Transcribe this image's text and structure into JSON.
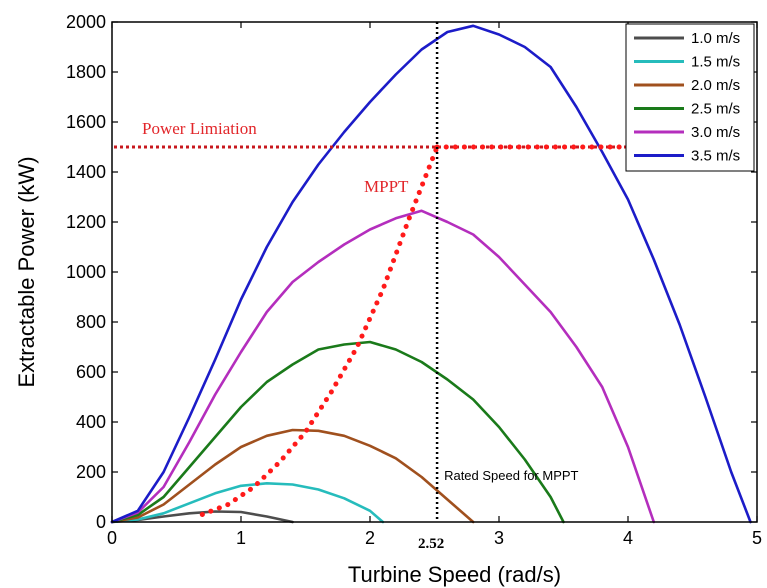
{
  "chart_data": {
    "type": "line",
    "title": "",
    "xlabel": "Turbine Speed (rad/s)",
    "ylabel": "Extractable Power (kW)",
    "xlim": [
      0,
      5
    ],
    "ylim": [
      0,
      2000
    ],
    "xticks": [
      "0",
      "1",
      "2",
      "3",
      "4",
      "5"
    ],
    "yticks": [
      "0",
      "200",
      "400",
      "600",
      "800",
      "1000",
      "1200",
      "1400",
      "1600",
      "1800",
      "2000"
    ],
    "x_marker_label": "2.52",
    "grid": false,
    "legend_position": "top-right",
    "series": [
      {
        "name": "1.0 m/s",
        "color": "#4d4d4d",
        "x": [
          0,
          0.2,
          0.4,
          0.6,
          0.8,
          1.0,
          1.2,
          1.4
        ],
        "y": [
          0,
          8,
          22,
          35,
          42,
          40,
          22,
          0
        ]
      },
      {
        "name": "1.5 m/s",
        "color": "#26bcbc",
        "x": [
          0,
          0.2,
          0.4,
          0.6,
          0.8,
          1.0,
          1.2,
          1.4,
          1.6,
          1.8,
          2.0,
          2.1
        ],
        "y": [
          0,
          10,
          35,
          75,
          115,
          145,
          155,
          150,
          130,
          95,
          45,
          0
        ]
      },
      {
        "name": "2.0 m/s",
        "color": "#a0501e",
        "x": [
          0,
          0.2,
          0.4,
          0.6,
          0.8,
          1.0,
          1.2,
          1.4,
          1.6,
          1.8,
          2.0,
          2.2,
          2.4,
          2.6,
          2.8
        ],
        "y": [
          0,
          18,
          70,
          150,
          230,
          300,
          345,
          368,
          365,
          345,
          305,
          255,
          180,
          90,
          0
        ]
      },
      {
        "name": "2.5 m/s",
        "color": "#1a7a1a",
        "x": [
          0,
          0.2,
          0.4,
          0.6,
          0.8,
          1.0,
          1.2,
          1.4,
          1.6,
          1.8,
          2.0,
          2.2,
          2.4,
          2.6,
          2.8,
          3.0,
          3.2,
          3.4,
          3.5
        ],
        "y": [
          0,
          28,
          100,
          220,
          340,
          460,
          560,
          630,
          690,
          710,
          720,
          690,
          640,
          570,
          490,
          380,
          250,
          100,
          0
        ]
      },
      {
        "name": "3.0 m/s",
        "color": "#b42ebd",
        "x": [
          0,
          0.2,
          0.4,
          0.6,
          0.8,
          1.0,
          1.2,
          1.4,
          1.6,
          1.8,
          2.0,
          2.2,
          2.4,
          2.6,
          2.8,
          3.0,
          3.2,
          3.4,
          3.6,
          3.8,
          4.0,
          4.2
        ],
        "y": [
          0,
          38,
          140,
          320,
          510,
          680,
          840,
          960,
          1040,
          1110,
          1170,
          1215,
          1245,
          1200,
          1150,
          1060,
          950,
          840,
          700,
          540,
          300,
          0
        ]
      },
      {
        "name": "3.5 m/s",
        "color": "#1c1cc8",
        "x": [
          0,
          0.2,
          0.4,
          0.6,
          0.8,
          1.0,
          1.2,
          1.4,
          1.6,
          1.8,
          2.0,
          2.2,
          2.4,
          2.6,
          2.8,
          3.0,
          3.2,
          3.4,
          3.6,
          3.8,
          4.0,
          4.2,
          4.4,
          4.6,
          4.8,
          4.95
        ],
        "y": [
          0,
          45,
          200,
          420,
          650,
          890,
          1100,
          1280,
          1430,
          1560,
          1680,
          1790,
          1890,
          1960,
          1985,
          1950,
          1900,
          1820,
          1660,
          1480,
          1290,
          1050,
          790,
          500,
          200,
          0
        ]
      }
    ],
    "mppt_curve": {
      "label": "MPPT",
      "color": "#e2262a",
      "x": [
        0.7,
        0.9,
        1.1,
        1.3,
        1.5,
        1.7,
        1.9,
        2.1,
        2.3,
        2.52
      ],
      "y": [
        30,
        70,
        140,
        240,
        360,
        520,
        700,
        930,
        1210,
        1500
      ]
    },
    "power_limit": {
      "label": "Power Limiation",
      "color": "#c8181e",
      "value": 1500
    },
    "rated_speed": {
      "label": "Rated Speed for MPPT",
      "value": 2.52
    }
  }
}
